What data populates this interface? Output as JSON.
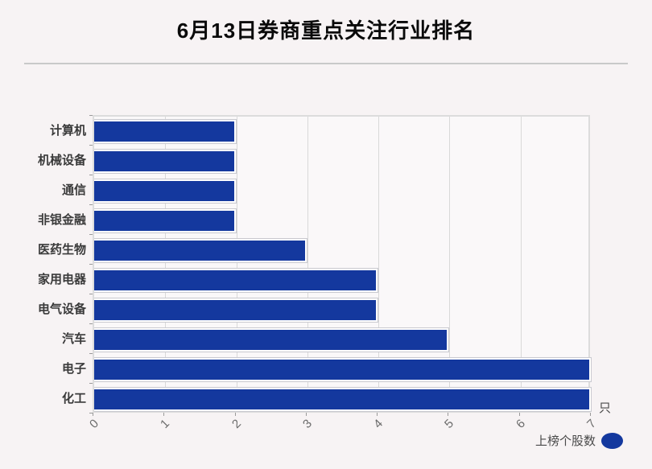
{
  "title": "6月13日券商重点关注行业排名",
  "unit_label": "只",
  "legend": {
    "label": "上榜个股数"
  },
  "colors": {
    "bar": "#14389e",
    "grid": "#d9d9d9",
    "page_background": "#f7f3f4",
    "plot_background": "#faf8f9",
    "title_text": "#0a0a0a",
    "category_text": "#3a3a3a",
    "tick_text": "#6b6b6b"
  },
  "chart_data": {
    "type": "bar",
    "orientation": "horizontal",
    "title": "6月13日券商重点关注行业排名",
    "categories": [
      "计算机",
      "机械设备",
      "通信",
      "非银金融",
      "医药生物",
      "家用电器",
      "电气设备",
      "汽车",
      "电子",
      "化工"
    ],
    "series": [
      {
        "name": "上榜个股数",
        "values": [
          2,
          2,
          2,
          2,
          3,
          4,
          4,
          5,
          7,
          7
        ]
      }
    ],
    "xlabel": "只",
    "ylabel": "",
    "xlim": [
      0,
      7
    ],
    "xticks": [
      0,
      1,
      2,
      3,
      4,
      5,
      6,
      7
    ],
    "grid": true,
    "legend_position": "bottom-right"
  }
}
